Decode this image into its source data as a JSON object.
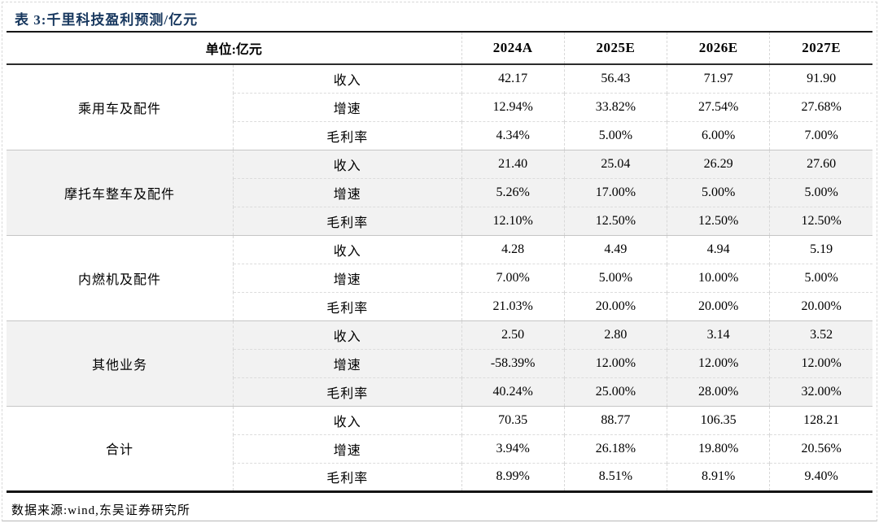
{
  "page": {
    "title": "表 3:千里科技盈利预测/亿元",
    "source_note": "数据来源:wind,东吴证券研究所",
    "colors": {
      "title_navy": "#17375E",
      "row_shade": "#F2F2F2",
      "grid_line": "#D8D8D8",
      "heavy_line": "#141414"
    }
  },
  "table": {
    "unit_label": "单位:亿元",
    "columns": [
      "2024A",
      "2025E",
      "2026E",
      "2027E"
    ],
    "groups": [
      {
        "name": "乘用车及配件",
        "rows": [
          {
            "metric": "收入",
            "values": [
              "42.17",
              "56.43",
              "71.97",
              "91.90"
            ]
          },
          {
            "metric": "增速",
            "values": [
              "12.94%",
              "33.82%",
              "27.54%",
              "27.68%"
            ]
          },
          {
            "metric": "毛利率",
            "values": [
              "4.34%",
              "5.00%",
              "6.00%",
              "7.00%"
            ]
          }
        ]
      },
      {
        "name": "摩托车整车及配件",
        "rows": [
          {
            "metric": "收入",
            "values": [
              "21.40",
              "25.04",
              "26.29",
              "27.60"
            ]
          },
          {
            "metric": "增速",
            "values": [
              "5.26%",
              "17.00%",
              "5.00%",
              "5.00%"
            ]
          },
          {
            "metric": "毛利率",
            "values": [
              "12.10%",
              "12.50%",
              "12.50%",
              "12.50%"
            ]
          }
        ]
      },
      {
        "name": "内燃机及配件",
        "rows": [
          {
            "metric": "收入",
            "values": [
              "4.28",
              "4.49",
              "4.94",
              "5.19"
            ]
          },
          {
            "metric": "增速",
            "values": [
              "7.00%",
              "5.00%",
              "10.00%",
              "5.00%"
            ]
          },
          {
            "metric": "毛利率",
            "values": [
              "21.03%",
              "20.00%",
              "20.00%",
              "20.00%"
            ]
          }
        ]
      },
      {
        "name": "其他业务",
        "rows": [
          {
            "metric": "收入",
            "values": [
              "2.50",
              "2.80",
              "3.14",
              "3.52"
            ]
          },
          {
            "metric": "增速",
            "values": [
              "-58.39%",
              "12.00%",
              "12.00%",
              "12.00%"
            ]
          },
          {
            "metric": "毛利率",
            "values": [
              "40.24%",
              "25.00%",
              "28.00%",
              "32.00%"
            ]
          }
        ]
      },
      {
        "name": "合计",
        "rows": [
          {
            "metric": "收入",
            "values": [
              "70.35",
              "88.77",
              "106.35",
              "128.21"
            ]
          },
          {
            "metric": "增速",
            "values": [
              "3.94%",
              "26.18%",
              "19.80%",
              "20.56%"
            ]
          },
          {
            "metric": "毛利率",
            "values": [
              "8.99%",
              "8.51%",
              "8.91%",
              "9.40%"
            ]
          }
        ]
      }
    ]
  },
  "chart_data": {
    "type": "table",
    "title": "表 3:千里科技盈利预测/亿元",
    "unit": "亿元",
    "columns": [
      "2024A",
      "2025E",
      "2026E",
      "2027E"
    ],
    "row_groups": [
      {
        "group": "乘用车及配件",
        "收入": [
          42.17,
          56.43,
          71.97,
          91.9
        ],
        "增速": [
          "12.94%",
          "33.82%",
          "27.54%",
          "27.68%"
        ],
        "毛利率": [
          "4.34%",
          "5.00%",
          "6.00%",
          "7.00%"
        ]
      },
      {
        "group": "摩托车整车及配件",
        "收入": [
          21.4,
          25.04,
          26.29,
          27.6
        ],
        "增速": [
          "5.26%",
          "17.00%",
          "5.00%",
          "5.00%"
        ],
        "毛利率": [
          "12.10%",
          "12.50%",
          "12.50%",
          "12.50%"
        ]
      },
      {
        "group": "内燃机及配件",
        "收入": [
          4.28,
          4.49,
          4.94,
          5.19
        ],
        "增速": [
          "7.00%",
          "5.00%",
          "10.00%",
          "5.00%"
        ],
        "毛利率": [
          "21.03%",
          "20.00%",
          "20.00%",
          "20.00%"
        ]
      },
      {
        "group": "其他业务",
        "收入": [
          2.5,
          2.8,
          3.14,
          3.52
        ],
        "增速": [
          "-58.39%",
          "12.00%",
          "12.00%",
          "12.00%"
        ],
        "毛利率": [
          "40.24%",
          "25.00%",
          "28.00%",
          "32.00%"
        ]
      },
      {
        "group": "合计",
        "收入": [
          70.35,
          88.77,
          106.35,
          128.21
        ],
        "增速": [
          "3.94%",
          "26.18%",
          "19.80%",
          "20.56%"
        ],
        "毛利率": [
          "8.99%",
          "8.51%",
          "8.91%",
          "9.40%"
        ]
      }
    ],
    "source": "数据来源:wind,东吴证券研究所"
  }
}
